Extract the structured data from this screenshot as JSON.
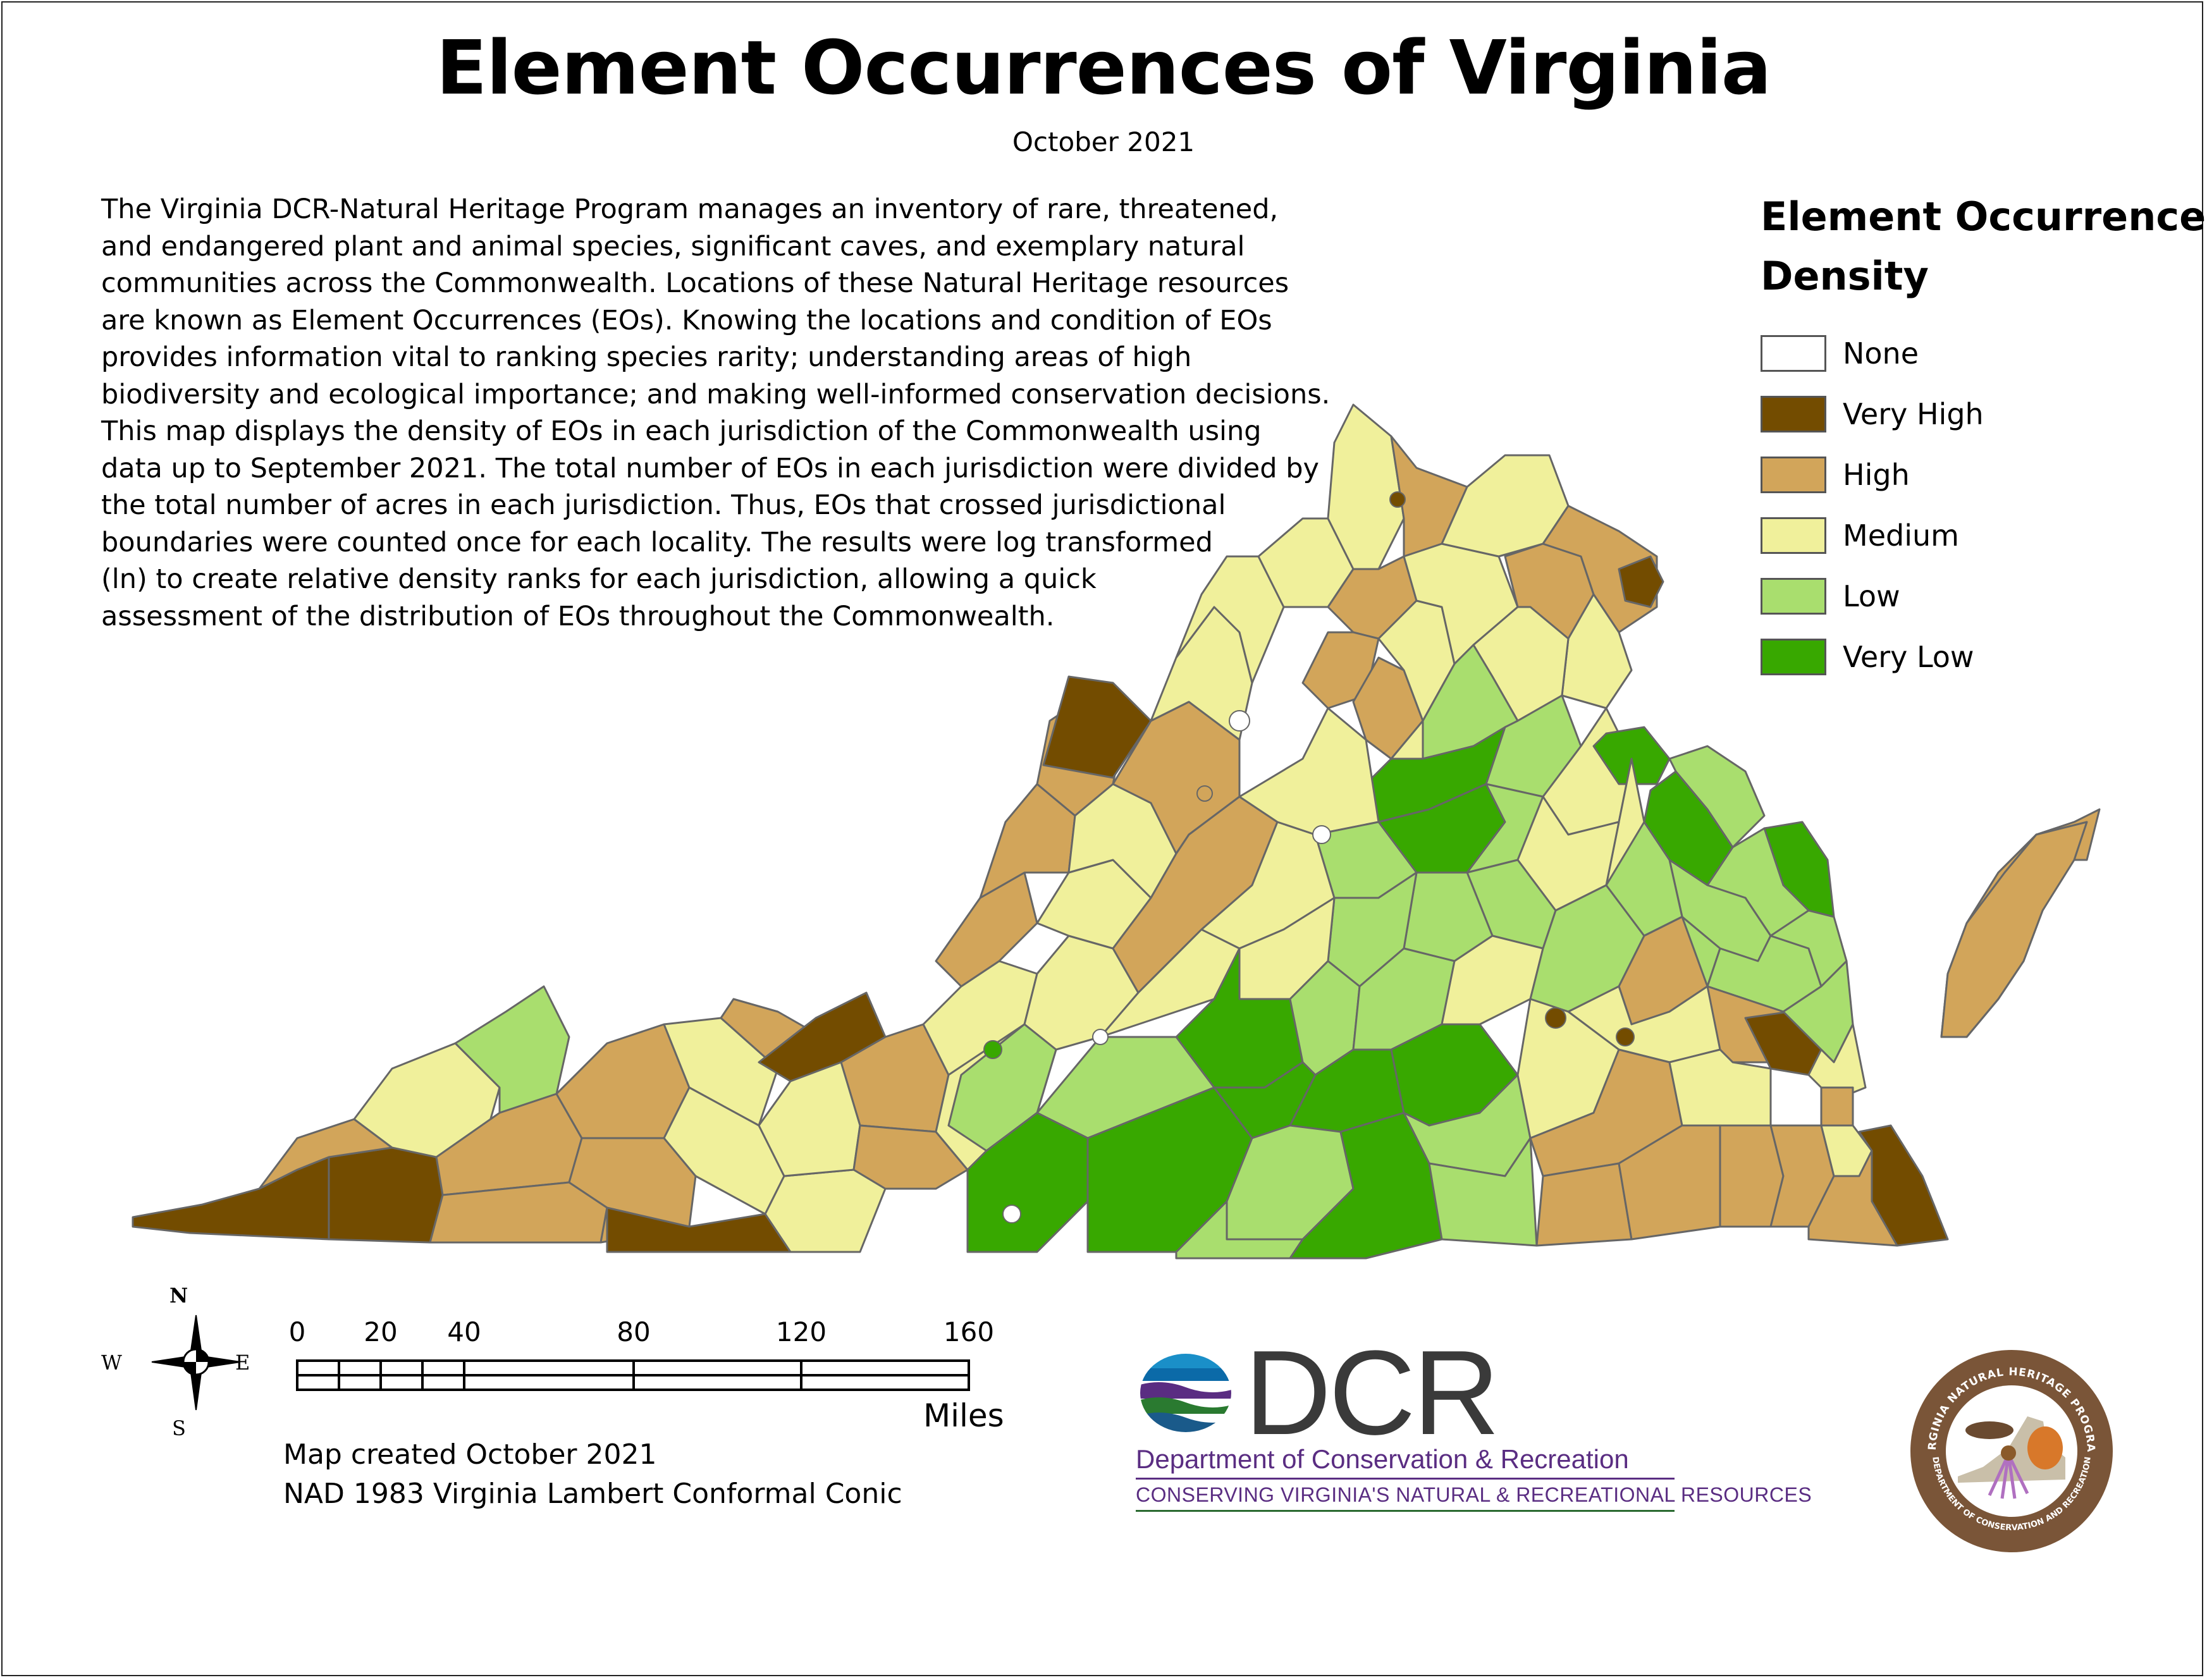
{
  "title": "Element Occurrences of Virginia",
  "subtitle": "October 2021",
  "description_lines": [
    "The Virginia DCR-Natural Heritage Program manages an inventory of rare, threatened,",
    "and endangered plant and animal species, significant caves, and exemplary natural",
    "communities across the Commonwealth. Locations of these Natural Heritage resources",
    "are known as Element Occurrences (EOs). Knowing the locations and condition of EOs",
    "provides information vital to ranking species rarity; understanding areas of high",
    "biodiversity and ecological importance; and making well-informed conservation decisions.",
    "This map displays the density of EOs in each jurisdiction of the Commonwealth using",
    "data up to September 2021. The total number of EOs in each jurisdiction were divided by",
    "the total number of acres in each jurisdiction. Thus, EOs that crossed jurisdictional",
    "boundaries were counted once for each locality. The results were log transformed",
    "(ln) to create relative density ranks for each jurisdiction, allowing a quick",
    "assessment of the distribution of EOs throughout the Commonwealth."
  ],
  "legend": {
    "title_lines": [
      "Element Occurrence",
      "Density"
    ],
    "items": [
      {
        "label": "None",
        "color": "#ffffff"
      },
      {
        "label": "Very High",
        "color": "#734c00"
      },
      {
        "label": "High",
        "color": "#d2a55a"
      },
      {
        "label": "Medium",
        "color": "#f0f09b"
      },
      {
        "label": "Low",
        "color": "#a9de6e"
      },
      {
        "label": "Very Low",
        "color": "#38a800"
      }
    ]
  },
  "compass": {
    "n": "N",
    "s": "S",
    "e": "E",
    "w": "W"
  },
  "scale_bar": {
    "labels": [
      "0",
      "20",
      "40",
      "80",
      "120",
      "160"
    ],
    "units": "Miles"
  },
  "credits": [
    "Map created October 2021",
    "NAD 1983 Virginia Lambert Conformal Conic"
  ],
  "dcr_logo": {
    "wordmark": "DCR",
    "department": "Department of Conservation & Recreation",
    "tagline": "CONSERVING VIRGINIA'S NATURAL & RECREATIONAL RESOURCES"
  },
  "seal": {
    "top_text": "VIRGINIA NATURAL HERITAGE PROGRAM",
    "bottom_text": "DEPARTMENT OF CONSERVATION AND RECREATION"
  }
}
